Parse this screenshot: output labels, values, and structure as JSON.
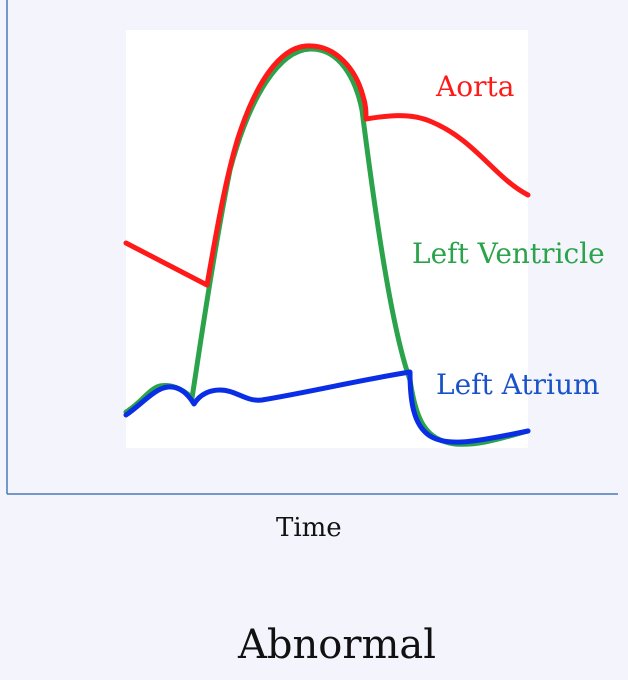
{
  "axes": {
    "xlabel": "Time"
  },
  "caption": "Abnormal",
  "colors": {
    "background": "#f4f5fc",
    "plot_area": "#ffffff",
    "axis": "#4a79b9",
    "aorta": "#ff1a1a",
    "left_ventricle": "#2aa34a",
    "left_atrium": "#0a2ee6"
  },
  "curves": {
    "aorta": {
      "label": "Aorta"
    },
    "left_ventricle": {
      "label": "Left Ventricle"
    },
    "left_atrium": {
      "label": "Left Atrium"
    }
  }
}
